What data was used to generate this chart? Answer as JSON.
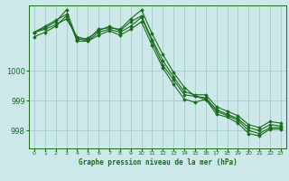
{
  "xlabel": "Graphe pression niveau de la mer (hPa)",
  "background_color": "#cce8e8",
  "grid_color": "#aacfcf",
  "line_color": "#1a6b1a",
  "xlim": [
    -0.5,
    23.5
  ],
  "ylim": [
    997.4,
    1002.2
  ],
  "yticks": [
    998,
    999,
    1000
  ],
  "xticks": [
    0,
    1,
    2,
    3,
    4,
    5,
    6,
    7,
    8,
    9,
    10,
    11,
    12,
    13,
    14,
    15,
    16,
    17,
    18,
    19,
    20,
    21,
    22,
    23
  ],
  "series": [
    [
      1001.3,
      1001.5,
      1001.7,
      1001.9,
      1001.0,
      1001.0,
      1001.3,
      1001.4,
      1001.3,
      1001.5,
      1001.8,
      1001.0,
      1000.2,
      999.7,
      999.2,
      999.15,
      999.1,
      998.7,
      998.55,
      998.4,
      998.1,
      998.0,
      998.2,
      998.15
    ],
    [
      1001.3,
      1001.45,
      1001.65,
      1002.05,
      1001.05,
      1001.1,
      1001.35,
      1001.5,
      1001.35,
      1001.65,
      1001.85,
      1001.05,
      1000.35,
      999.8,
      999.3,
      999.2,
      999.2,
      998.8,
      998.65,
      998.5,
      998.2,
      998.1,
      998.3,
      998.25
    ],
    [
      1001.3,
      1001.4,
      1001.55,
      1001.75,
      1001.15,
      1001.05,
      1001.4,
      1001.45,
      1001.4,
      1001.75,
      1002.05,
      1001.25,
      1000.55,
      999.95,
      999.45,
      999.15,
      999.05,
      998.65,
      998.5,
      998.35,
      998.0,
      997.9,
      998.1,
      998.1
    ],
    [
      1001.15,
      1001.3,
      1001.5,
      1001.85,
      1001.1,
      1001.0,
      1001.2,
      1001.35,
      1001.2,
      1001.4,
      1001.65,
      1000.85,
      1000.1,
      999.55,
      999.05,
      998.95,
      999.05,
      998.55,
      998.45,
      998.25,
      997.9,
      997.82,
      998.05,
      998.05
    ]
  ]
}
